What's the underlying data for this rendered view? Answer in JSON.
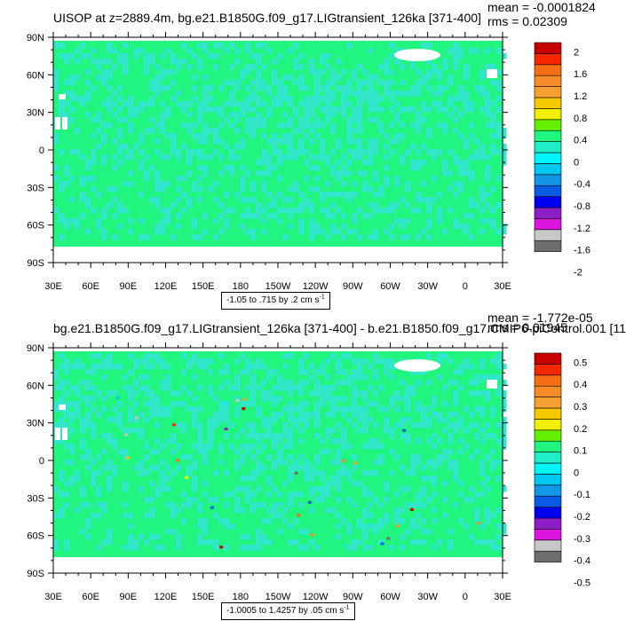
{
  "colors": {
    "map_green": "#1ff57f",
    "map_cyan": "#32e6c9",
    "land_white": "#ffffff",
    "frame": "#000000",
    "colorbar": [
      "#6e6e6e",
      "#c8c8c8",
      "#dc14dc",
      "#8c1ec8",
      "#0000f0",
      "#0a5ae6",
      "#1496e6",
      "#00c8f0",
      "#00f5ff",
      "#20eec8",
      "#1ff57f",
      "#64f000",
      "#f0f000",
      "#f5c800",
      "#f5a032",
      "#f58c28",
      "#f56e14",
      "#f52800",
      "#c80000"
    ]
  },
  "panels": [
    {
      "id": "top",
      "title": "UISOP at z=2889.4m, bg.e21.B1850G.f09_g17.LIGtransient_126ka [371-400]",
      "mean": "mean = -0.0001824",
      "rms": "rms = 0.02309",
      "lat_labels": [
        "90N",
        "60N",
        "30N",
        "0",
        "30S",
        "60S",
        "90S"
      ],
      "lon_labels": [
        "30E",
        "60E",
        "90E",
        "120E",
        "150E",
        "180",
        "150W",
        "120W",
        "90W",
        "60W",
        "30W",
        "0",
        "30E"
      ],
      "colorbar_labels": [
        "2",
        "1.6",
        "1.2",
        "0.8",
        "0.4",
        "0",
        "-0.4",
        "-0.8",
        "-1.2",
        "-1.6",
        "-2"
      ],
      "contour_label": "-1.05 to .715 by .2 cm s",
      "units_exp": "-1"
    },
    {
      "id": "bottom",
      "title": "bg.e21.B1850G.f09_g17.LIGtransient_126ka [371-400] - b.e21.B1850.f09_g17.CMIP6-piControl.001 [11",
      "mean": "mean = -1.772e-05",
      "rms": "rms = 0.01945",
      "lat_labels": [
        "90N",
        "60N",
        "30N",
        "0",
        "30S",
        "60S",
        "90S"
      ],
      "lon_labels": [
        "30E",
        "60E",
        "90E",
        "120E",
        "150E",
        "180",
        "150W",
        "120W",
        "90W",
        "60W",
        "30W",
        "0",
        "30E"
      ],
      "colorbar_labels": [
        "0.5",
        "0.4",
        "0.3",
        "0.2",
        "0.1",
        "0",
        "-0.1",
        "-0.2",
        "-0.3",
        "-0.4",
        "-0.5"
      ],
      "contour_label": "-1.0005 to 1.4257 by .05 cm s",
      "units_exp": "-1"
    }
  ]
}
